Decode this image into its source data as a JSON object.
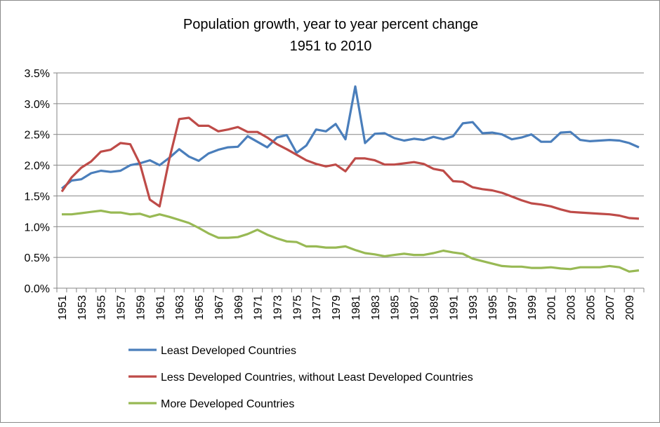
{
  "chart_data": {
    "type": "line",
    "title": [
      "Population growth, year to year percent change",
      "1951 to 2010"
    ],
    "xlabel": "",
    "ylabel": "",
    "ylim": [
      0,
      3.5
    ],
    "yticks": [
      "0.0%",
      "0.5%",
      "1.0%",
      "1.5%",
      "2.0%",
      "2.5%",
      "3.0%",
      "3.5%"
    ],
    "grid": true,
    "legend": "bottom",
    "x": [
      1951,
      1952,
      1953,
      1954,
      1955,
      1956,
      1957,
      1958,
      1959,
      1960,
      1961,
      1962,
      1963,
      1964,
      1965,
      1966,
      1967,
      1968,
      1969,
      1970,
      1971,
      1972,
      1973,
      1974,
      1975,
      1976,
      1977,
      1978,
      1979,
      1980,
      1981,
      1982,
      1983,
      1984,
      1985,
      1986,
      1987,
      1988,
      1989,
      1990,
      1991,
      1992,
      1993,
      1994,
      1995,
      1996,
      1997,
      1998,
      1999,
      2000,
      2001,
      2002,
      2003,
      2004,
      2005,
      2006,
      2007,
      2008,
      2009,
      2010
    ],
    "series": [
      {
        "name": "Least Developed Countries",
        "color": "#4a7ebb",
        "values": [
          1.62,
          1.75,
          1.77,
          1.87,
          1.91,
          1.89,
          1.91,
          2.0,
          2.03,
          2.08,
          2.0,
          2.12,
          2.26,
          2.14,
          2.07,
          2.19,
          2.25,
          2.29,
          2.3,
          2.47,
          2.38,
          2.29,
          2.45,
          2.49,
          2.2,
          2.32,
          2.58,
          2.55,
          2.67,
          2.42,
          3.28,
          2.36,
          2.51,
          2.52,
          2.44,
          2.4,
          2.43,
          2.41,
          2.46,
          2.42,
          2.47,
          2.68,
          2.7,
          2.52,
          2.53,
          2.5,
          2.42,
          2.45,
          2.5,
          2.38,
          2.38,
          2.53,
          2.54,
          2.41,
          2.39,
          2.4,
          2.41,
          2.4,
          2.36,
          2.29
        ]
      },
      {
        "name": "Less Developed Countries, without Least Developed Countries",
        "color": "#be4b48",
        "values": [
          1.57,
          1.8,
          1.96,
          2.06,
          2.22,
          2.25,
          2.36,
          2.34,
          2.02,
          1.44,
          1.33,
          2.1,
          2.75,
          2.77,
          2.64,
          2.64,
          2.55,
          2.58,
          2.62,
          2.54,
          2.54,
          2.45,
          2.34,
          2.26,
          2.17,
          2.08,
          2.02,
          1.98,
          2.01,
          1.9,
          2.11,
          2.11,
          2.08,
          2.01,
          2.01,
          2.03,
          2.05,
          2.02,
          1.94,
          1.91,
          1.74,
          1.73,
          1.64,
          1.61,
          1.59,
          1.55,
          1.49,
          1.43,
          1.38,
          1.36,
          1.33,
          1.28,
          1.24,
          1.23,
          1.22,
          1.21,
          1.2,
          1.18,
          1.14,
          1.13
        ]
      },
      {
        "name": "More Developed Countries",
        "color": "#98b954",
        "values": [
          1.2,
          1.2,
          1.22,
          1.24,
          1.26,
          1.23,
          1.23,
          1.2,
          1.21,
          1.16,
          1.2,
          1.16,
          1.11,
          1.06,
          0.98,
          0.89,
          0.82,
          0.82,
          0.83,
          0.88,
          0.95,
          0.87,
          0.81,
          0.76,
          0.75,
          0.68,
          0.68,
          0.66,
          0.66,
          0.68,
          0.62,
          0.57,
          0.55,
          0.52,
          0.54,
          0.56,
          0.54,
          0.54,
          0.57,
          0.61,
          0.58,
          0.56,
          0.48,
          0.44,
          0.4,
          0.36,
          0.35,
          0.35,
          0.33,
          0.33,
          0.34,
          0.32,
          0.31,
          0.34,
          0.34,
          0.34,
          0.36,
          0.34,
          0.27,
          0.29
        ]
      }
    ]
  }
}
